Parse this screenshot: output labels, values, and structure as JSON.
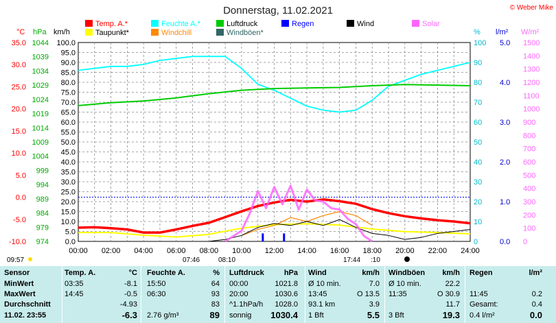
{
  "title": "Donnerstag, 11.02.2021",
  "copyright": "© Weber Mike",
  "legend": [
    {
      "label": "Temp. A.*",
      "color": "#ff0000"
    },
    {
      "label": "Feuchte A.*",
      "color": "#00ffff"
    },
    {
      "label": "Luftdruck",
      "color": "#00cc00"
    },
    {
      "label": "Regen",
      "color": "#0000ff"
    },
    {
      "label": "Wind",
      "color": "#000000"
    },
    {
      "label": "Solar",
      "color": "#ff66ff"
    },
    {
      "label": "Taupunkt*",
      "color": "#ffff00"
    },
    {
      "label": "Windchill",
      "color": "#ff8800"
    },
    {
      "label": "Windböen*",
      "color": "#336666"
    }
  ],
  "axes": {
    "temp_unit": "°C",
    "hpa_unit": "hPa",
    "kmh_unit": "km/h",
    "pct_unit": "%",
    "rain_unit": "l/m²",
    "solar_unit": "W/m²",
    "temp_ticks": [
      "35.0",
      "30.0",
      "25.0",
      "20.0",
      "15.0",
      "10.0",
      "5.0",
      "0.0",
      "-5.0",
      "-10.0"
    ],
    "hpa_ticks": [
      "1044",
      "1039",
      "1034",
      "1029",
      "1024",
      "1019",
      "1014",
      "1009",
      "1004",
      "999",
      "994",
      "989",
      "984",
      "979",
      "974"
    ],
    "kmh_ticks": [
      "100.0",
      "95.0",
      "90.0",
      "85.0",
      "80.0",
      "75.0",
      "70.0",
      "65.0",
      "60.0",
      "55.0",
      "50.0",
      "45.0",
      "40.0",
      "35.0",
      "30.0",
      "25.0",
      "20.0",
      "15.0",
      "10.0",
      "5.0",
      "0.0"
    ],
    "pct_ticks": [
      "100",
      "90",
      "80",
      "70",
      "60",
      "50",
      "40",
      "30",
      "20",
      "10",
      "0"
    ],
    "rain_ticks": [
      "5.0",
      "4.0",
      "3.0",
      "2.0",
      "1.0",
      "0.0"
    ],
    "solar_ticks": [
      "1500",
      "1400",
      "1300",
      "1200",
      "1100",
      "1000",
      "900",
      "800",
      "700",
      "600",
      "500",
      "400",
      "300",
      "200",
      "100",
      "0"
    ],
    "time_ticks": [
      "00:00",
      "02:00",
      "04:00",
      "06:00",
      "08:00",
      "10:00",
      "12:00",
      "14:00",
      "16:00",
      "18:00",
      "20:00",
      "22:00",
      "24:00"
    ]
  },
  "sun": {
    "sunrise_left": "09:57",
    "sunrise": "07:46",
    "sunrise2": "08:10",
    "sunset": "17:44",
    "sunset2": ":10"
  },
  "chart_data": {
    "type": "line",
    "title": "Donnerstag, 11.02.2021",
    "x_unit": "hours",
    "xlim": [
      0,
      24
    ],
    "series": [
      {
        "name": "Temp. A.*",
        "color": "#ff0000",
        "axis": "temp",
        "ylim": [
          -10,
          35
        ],
        "x": [
          0,
          1,
          2,
          3,
          4,
          5,
          6,
          7,
          8,
          9,
          10,
          11,
          12,
          13,
          14,
          15,
          16,
          17,
          18,
          19,
          20,
          21,
          22,
          23,
          24
        ],
        "values": [
          -6.9,
          -6.8,
          -7.0,
          -7.3,
          -8.0,
          -8.0,
          -7.3,
          -6.5,
          -5.8,
          -4.5,
          -3.2,
          -2.0,
          -1.2,
          -0.6,
          -1.0,
          -0.5,
          -0.9,
          -1.5,
          -2.7,
          -3.6,
          -4.3,
          -4.8,
          -5.2,
          -5.5,
          -5.9
        ]
      },
      {
        "name": "Feuchte A.*",
        "color": "#00ffff",
        "axis": "pct",
        "ylim": [
          0,
          100
        ],
        "x": [
          0,
          1,
          2,
          3,
          4,
          4.5,
          5,
          6,
          7,
          8,
          9,
          10,
          11,
          12,
          13,
          14,
          15,
          16,
          17,
          18,
          19,
          20,
          21,
          22,
          23,
          24
        ],
        "values": [
          86,
          87,
          88,
          88,
          89,
          90,
          91,
          92,
          93,
          93,
          93,
          87,
          79,
          76,
          72,
          68,
          66,
          65,
          66,
          71,
          78,
          81,
          84,
          86,
          88,
          90
        ]
      },
      {
        "name": "Luftdruck",
        "color": "#00cc00",
        "axis": "hpa",
        "ylim": [
          974,
          1044
        ],
        "x": [
          0,
          2,
          4,
          6,
          8,
          10,
          12,
          14,
          16,
          18,
          20,
          22,
          24
        ],
        "values": [
          1021.8,
          1022.8,
          1023.4,
          1024.5,
          1026.0,
          1027.2,
          1027.8,
          1028.0,
          1028.2,
          1028.8,
          1029.2,
          1029.0,
          1028.8
        ]
      },
      {
        "name": "Taupunkt*",
        "color": "#ffff00",
        "axis": "temp",
        "ylim": [
          -10,
          35
        ],
        "x": [
          0,
          2,
          4,
          6,
          8,
          10,
          12,
          14,
          16,
          18,
          20,
          22,
          24
        ],
        "values": [
          -8.0,
          -8.0,
          -8.6,
          -9.0,
          -8.4,
          -7.0,
          -6.2,
          -6.0,
          -6.3,
          -7.2,
          -7.8,
          -8.0,
          -8.3
        ]
      },
      {
        "name": "Windchill",
        "color": "#ff8800",
        "axis": "kmh",
        "ylim": [
          0,
          100
        ],
        "x": [
          10,
          11,
          12,
          13,
          14,
          15,
          16,
          17,
          18
        ],
        "values": [
          3,
          6,
          8,
          12,
          10,
          13,
          15,
          13,
          8
        ]
      },
      {
        "name": "Wind",
        "color": "#000000",
        "axis": "kmh",
        "ylim": [
          0,
          100
        ],
        "x": [
          8,
          9,
          10,
          11,
          12,
          13,
          14,
          15,
          16,
          17,
          18,
          19,
          20,
          21,
          22,
          23,
          24
        ],
        "values": [
          0,
          1,
          3,
          7,
          9,
          8,
          10,
          8,
          11,
          7,
          4,
          3,
          1,
          2,
          4,
          5,
          6
        ]
      },
      {
        "name": "Solar",
        "color": "#ff66ff",
        "axis": "solar",
        "ylim": [
          0,
          1500
        ],
        "x": [
          9,
          10,
          10.5,
          11,
          11.5,
          12,
          12.5,
          13,
          13.5,
          14,
          14.5,
          15,
          15.5,
          16,
          16.5,
          17,
          17.5,
          18
        ],
        "values": [
          0,
          80,
          210,
          380,
          250,
          410,
          280,
          420,
          240,
          390,
          310,
          300,
          250,
          240,
          170,
          130,
          40,
          0
        ]
      },
      {
        "name": "Regen",
        "color": "#0000ff",
        "axis": "rain",
        "ylim": [
          0,
          5
        ],
        "x": [
          11.3,
          12.6
        ],
        "values": [
          0.2,
          0.2
        ]
      }
    ]
  },
  "stats": {
    "sensor": {
      "head": "Sensor",
      "min": "MinWert",
      "max": "MaxWert",
      "avg": "Durchschnitt",
      "now": "11.02. 23:55"
    },
    "temp": {
      "head": "Temp. A.",
      "unit": "°C",
      "min_time": "03:35",
      "min": "-8.1",
      "max_time": "14:45",
      "max": "-0.5",
      "avg": "-4.93",
      "now": "-6.3"
    },
    "hum": {
      "head": "Feuchte A.",
      "unit": "%",
      "min_time": "15:50",
      "min": "64",
      "max_time": "06:30",
      "max": "93",
      "avg": "83",
      "now_extra": "2.76 g/m³",
      "now": "89"
    },
    "press": {
      "head": "Luftdruck",
      "unit": "hPa",
      "min_time": "00:00",
      "min": "1021.8",
      "max_time": "20:00",
      "max": "1030.6",
      "avg_label": "^1.1hPa/h",
      "avg": "1028.0",
      "now_label": "sonnig",
      "now": "1030.4"
    },
    "wind": {
      "head": "Wind",
      "unit": "km/h",
      "min_label": "Ø 10 min.",
      "min": "7.0",
      "max_time": "13:45",
      "max": "O 13.5",
      "avg_label": "93.1 km",
      "avg": "3.9",
      "now_label": "1 Bft",
      "now": "5.5"
    },
    "gust": {
      "head": "Windböen",
      "unit": "km/h",
      "min_label": "Ø 10 min.",
      "min": "22.2",
      "max_time": "11:35",
      "max": "O 30.9",
      "avg": "11.7",
      "now_label": "3 Bft",
      "now": "19.3"
    },
    "rain": {
      "head": "Regen",
      "unit": "l/m²",
      "max_time": "11:45",
      "max": "0.2",
      "avg_label": "Gesamt:",
      "avg": "0.4",
      "now_label": "0.4 l/m²",
      "now": "0.0"
    }
  }
}
